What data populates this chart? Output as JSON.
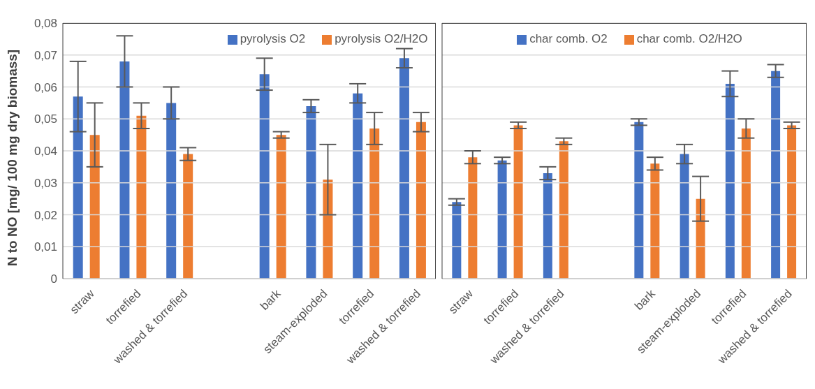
{
  "chart_data": [
    {
      "type": "bar",
      "ylabel": "N to NO [mg/ 100 mg dry biomass]",
      "categories": [
        "straw",
        "torrefied",
        "washed & torrefied",
        null,
        "bark",
        "steam-exploded",
        "torrefied",
        "washed & torrefied"
      ],
      "series": [
        {
          "name": "pyrolysis O2",
          "color": "#4472c4",
          "values": [
            0.057,
            0.068,
            0.055,
            null,
            0.064,
            0.054,
            0.058,
            0.069
          ],
          "errors": [
            [
              0.046,
              0.068
            ],
            [
              0.06,
              0.076
            ],
            [
              0.05,
              0.06
            ],
            null,
            [
              0.059,
              0.069
            ],
            [
              0.052,
              0.056
            ],
            [
              0.055,
              0.061
            ],
            [
              0.066,
              0.072
            ]
          ]
        },
        {
          "name": "pyrolysis O2/H2O",
          "color": "#ed7d31",
          "values": [
            0.045,
            0.051,
            0.039,
            null,
            0.045,
            0.031,
            0.047,
            0.049
          ],
          "errors": [
            [
              0.035,
              0.055
            ],
            [
              0.047,
              0.055
            ],
            [
              0.037,
              0.041
            ],
            null,
            [
              0.044,
              0.046
            ],
            [
              0.02,
              0.042
            ],
            [
              0.042,
              0.052
            ],
            [
              0.046,
              0.052
            ]
          ]
        }
      ],
      "ylim": [
        0,
        0.08
      ],
      "yticks": [
        0,
        {
          "value": 0.01,
          "label": "0,01"
        },
        {
          "value": 0.02,
          "label": "0,02"
        },
        {
          "value": 0.03,
          "label": "0,03"
        },
        {
          "value": 0.04,
          "label": "0,04"
        },
        {
          "value": 0.05,
          "label": "0,05"
        },
        {
          "value": 0.06,
          "label": "0,06"
        },
        {
          "value": 0.07,
          "label": "0,07"
        },
        {
          "value": 0.08,
          "label": "0,08"
        }
      ],
      "grid": "y",
      "legend": "top"
    },
    {
      "type": "bar",
      "categories": [
        "straw",
        "torrefied",
        "washed & torrefied",
        null,
        "bark",
        "steam-exploded",
        "torrefied",
        "washed & torrefied"
      ],
      "series": [
        {
          "name": "char comb. O2",
          "color": "#4472c4",
          "values": [
            0.024,
            0.037,
            0.033,
            null,
            0.049,
            0.039,
            0.061,
            0.065
          ],
          "errors": [
            [
              0.023,
              0.025
            ],
            [
              0.036,
              0.038
            ],
            [
              0.031,
              0.035
            ],
            null,
            [
              0.048,
              0.05
            ],
            [
              0.036,
              0.042
            ],
            [
              0.057,
              0.065
            ],
            [
              0.063,
              0.067
            ]
          ]
        },
        {
          "name": "char comb. O2/H2O",
          "color": "#ed7d31",
          "values": [
            0.038,
            0.048,
            0.043,
            null,
            0.036,
            0.025,
            0.047,
            0.048
          ],
          "errors": [
            [
              0.036,
              0.04
            ],
            [
              0.047,
              0.049
            ],
            [
              0.042,
              0.044
            ],
            null,
            [
              0.034,
              0.038
            ],
            [
              0.018,
              0.032
            ],
            [
              0.044,
              0.05
            ],
            [
              0.047,
              0.049
            ]
          ]
        }
      ],
      "ylim": [
        0,
        0.08
      ],
      "yticks": [
        0,
        0.01,
        0.02,
        0.03,
        0.04,
        0.05,
        0.06,
        0.07,
        0.08
      ],
      "grid": "y",
      "legend": "top",
      "tick_labels": "x"
    }
  ]
}
